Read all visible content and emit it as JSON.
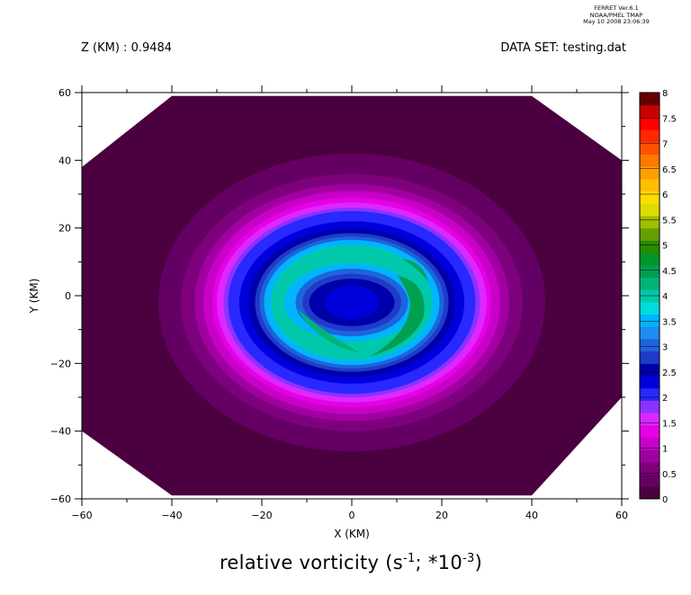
{
  "stamp": {
    "line1": "FERRET  Ver.6.1",
    "line2": "NOAA/PMEL TMAP",
    "line3": "May 10 2008 23:06:39"
  },
  "header": {
    "z_label": "Z (KM) : 0.9484",
    "dataset_label": "DATA SET: testing.dat"
  },
  "title": {
    "prefix": "relative vorticity (s",
    "exp1": "-1",
    "middle": "; *10",
    "exp2": "-3",
    "suffix": ")"
  },
  "chart_data": {
    "type": "heatmap",
    "subtype": "filled-contour",
    "xlabel": "X (KM)",
    "ylabel": "Y (KM)",
    "xlim": [
      -60,
      60
    ],
    "ylim": [
      -60,
      60
    ],
    "xticks": [
      -60,
      -40,
      -20,
      0,
      20,
      40,
      60
    ],
    "yticks": [
      -60,
      -40,
      -20,
      0,
      20,
      40,
      60
    ],
    "xtick_labels": [
      "−60",
      "−40",
      "−20",
      "0",
      "20",
      "40",
      "60"
    ],
    "ytick_labels": [
      "−60",
      "−40",
      "−20",
      "0",
      "20",
      "40",
      "60"
    ],
    "colorbar": {
      "levels": [
        0,
        0.5,
        1,
        1.5,
        2,
        2.5,
        3,
        3.5,
        4,
        4.5,
        5,
        5.5,
        6,
        6.5,
        7,
        7.5,
        8
      ],
      "tick_labels": [
        "0",
        "0.5",
        "1",
        "1.5",
        "2",
        "2.5",
        "3",
        "3.5",
        "4",
        "4.5",
        "5",
        "5.5",
        "6",
        "6.5",
        "7",
        "7.5",
        "8"
      ],
      "colors": [
        "#4b0040",
        "#640064",
        "#7d007d",
        "#a000a0",
        "#c800c8",
        "#e600e6",
        "#dc28ff",
        "#8c32ff",
        "#2828ff",
        "#0000dc",
        "#0000aa",
        "#1e3cc8",
        "#1e64dc",
        "#1e8cf0",
        "#00b4ff",
        "#00dcdc",
        "#00c8aa",
        "#00b478",
        "#00a050",
        "#009628",
        "#288c00",
        "#64a000",
        "#a0be00",
        "#dcdc00",
        "#ffdc00",
        "#ffbe00",
        "#ffa000",
        "#ff7800",
        "#ff5000",
        "#ff2800",
        "#ff0000",
        "#c80000",
        "#640000"
      ]
    },
    "field": {
      "description_domain_outline": [
        [
          -40,
          59
        ],
        [
          40,
          59
        ],
        [
          60,
          40
        ],
        [
          60,
          -30
        ],
        [
          40,
          -59
        ],
        [
          -40,
          -59
        ],
        [
          -60,
          -40
        ],
        [
          -60,
          38
        ]
      ],
      "center": [
        0,
        -2
      ],
      "contour_rings": [
        {
          "rx": 43,
          "ry": 44,
          "level": 0.25
        },
        {
          "rx": 38,
          "ry": 38,
          "level": 0.5
        },
        {
          "rx": 35,
          "ry": 35,
          "level": 0.75
        },
        {
          "rx": 33,
          "ry": 33,
          "level": 1.0
        },
        {
          "rx": 31,
          "ry": 31,
          "level": 1.25
        },
        {
          "rx": 30,
          "ry": 29.5,
          "level": 1.5
        },
        {
          "rx": 28.5,
          "ry": 28,
          "level": 1.75
        },
        {
          "rx": 27.5,
          "ry": 27,
          "level": 2.0
        },
        {
          "rx": 25,
          "ry": 24,
          "level": 2.25
        },
        {
          "rx": 23,
          "ry": 22,
          "level": 2.5
        },
        {
          "rx": 21.5,
          "ry": 20.5,
          "level": 2.75
        },
        {
          "rx": 20.5,
          "ry": 19.5,
          "level": 3.0
        },
        {
          "rx": 19.5,
          "ry": 18.5,
          "level": 3.5
        },
        {
          "rx": 18,
          "ry": 17,
          "level": 4.0
        },
        {
          "rx": 15,
          "ry": 11.5,
          "level": 3.5
        },
        {
          "rx": 12.5,
          "ry": 10,
          "level": 3.0
        },
        {
          "rx": 11,
          "ry": 8.5,
          "level": 2.75
        },
        {
          "rx": 9.5,
          "ry": 7,
          "level": 2.5
        },
        {
          "rx": 6,
          "ry": 5,
          "level": 2.25
        }
      ]
    }
  }
}
